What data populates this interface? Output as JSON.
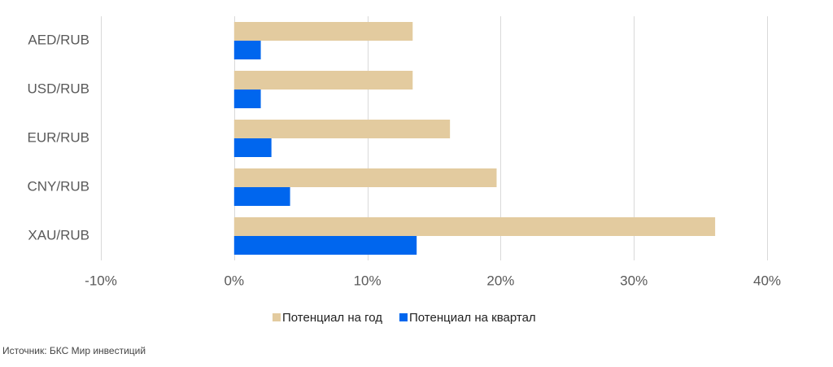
{
  "chart_data": {
    "type": "bar",
    "orientation": "horizontal",
    "categories": [
      "AED/RUB",
      "USD/RUB",
      "EUR/RUB",
      "CNY/RUB",
      "XAU/RUB"
    ],
    "series": [
      {
        "name": "Потенциал на год",
        "color": "#E3CB9F",
        "values": [
          13.4,
          13.4,
          16.2,
          19.7,
          36.1
        ]
      },
      {
        "name": "Потенциал на квартал",
        "color": "#0066EE",
        "values": [
          2.0,
          2.0,
          2.8,
          4.2,
          13.7
        ]
      }
    ],
    "xlim": [
      -10,
      40
    ],
    "xticks": [
      -10,
      0,
      10,
      20,
      30,
      40
    ],
    "xtick_labels": [
      "-10%",
      "0%",
      "10%",
      "20%",
      "30%",
      "40%"
    ],
    "grid": true,
    "legend_position": "bottom"
  },
  "footer": {
    "source": "Источник: БКС Мир инвестиций"
  }
}
